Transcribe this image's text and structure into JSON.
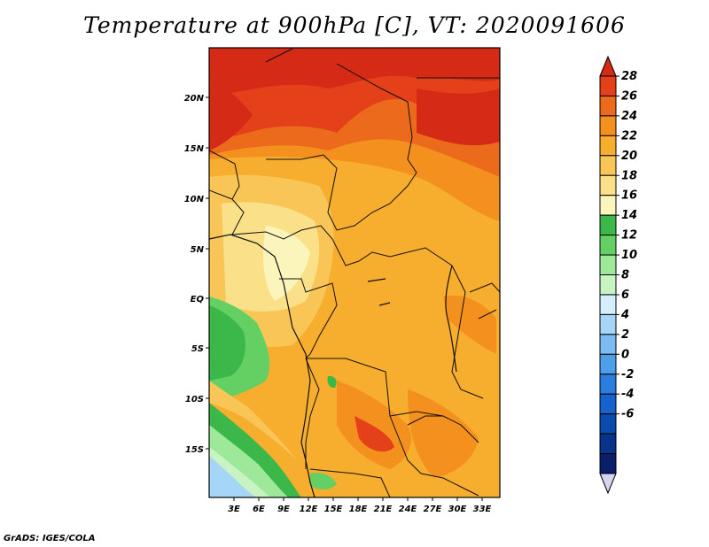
{
  "title": "Temperature at 900hPa [C], VT: 2020091606",
  "credit": "GrADS: IGES/COLA",
  "map": {
    "lat_ticks": [
      "20N",
      "15N",
      "10N",
      "5N",
      "EQ",
      "5S",
      "10S",
      "15S"
    ],
    "lon_ticks": [
      "3E",
      "6E",
      "9E",
      "12E",
      "15E",
      "18E",
      "21E",
      "24E",
      "27E",
      "30E",
      "33E"
    ]
  },
  "colorbar": {
    "levels": [
      "28",
      "26",
      "24",
      "22",
      "20",
      "18",
      "16",
      "14",
      "12",
      "10",
      "8",
      "6",
      "4",
      "2",
      "0",
      "-2",
      "-4",
      "-6"
    ],
    "colors": [
      "#d42a16",
      "#e4401a",
      "#ec6a1c",
      "#f3901e",
      "#f7ad2e",
      "#f9c556",
      "#fbe08a",
      "#fbf5bb",
      "#3cb84a",
      "#64d064",
      "#9ee89a",
      "#c8f4c4",
      "#d4eefa",
      "#a6d6f7",
      "#7cbcf2",
      "#4f9ee9",
      "#2a7ee0",
      "#1662cf",
      "#0a4cae",
      "#08358a",
      "#0a1e6a",
      "#d8d4f4"
    ]
  }
}
